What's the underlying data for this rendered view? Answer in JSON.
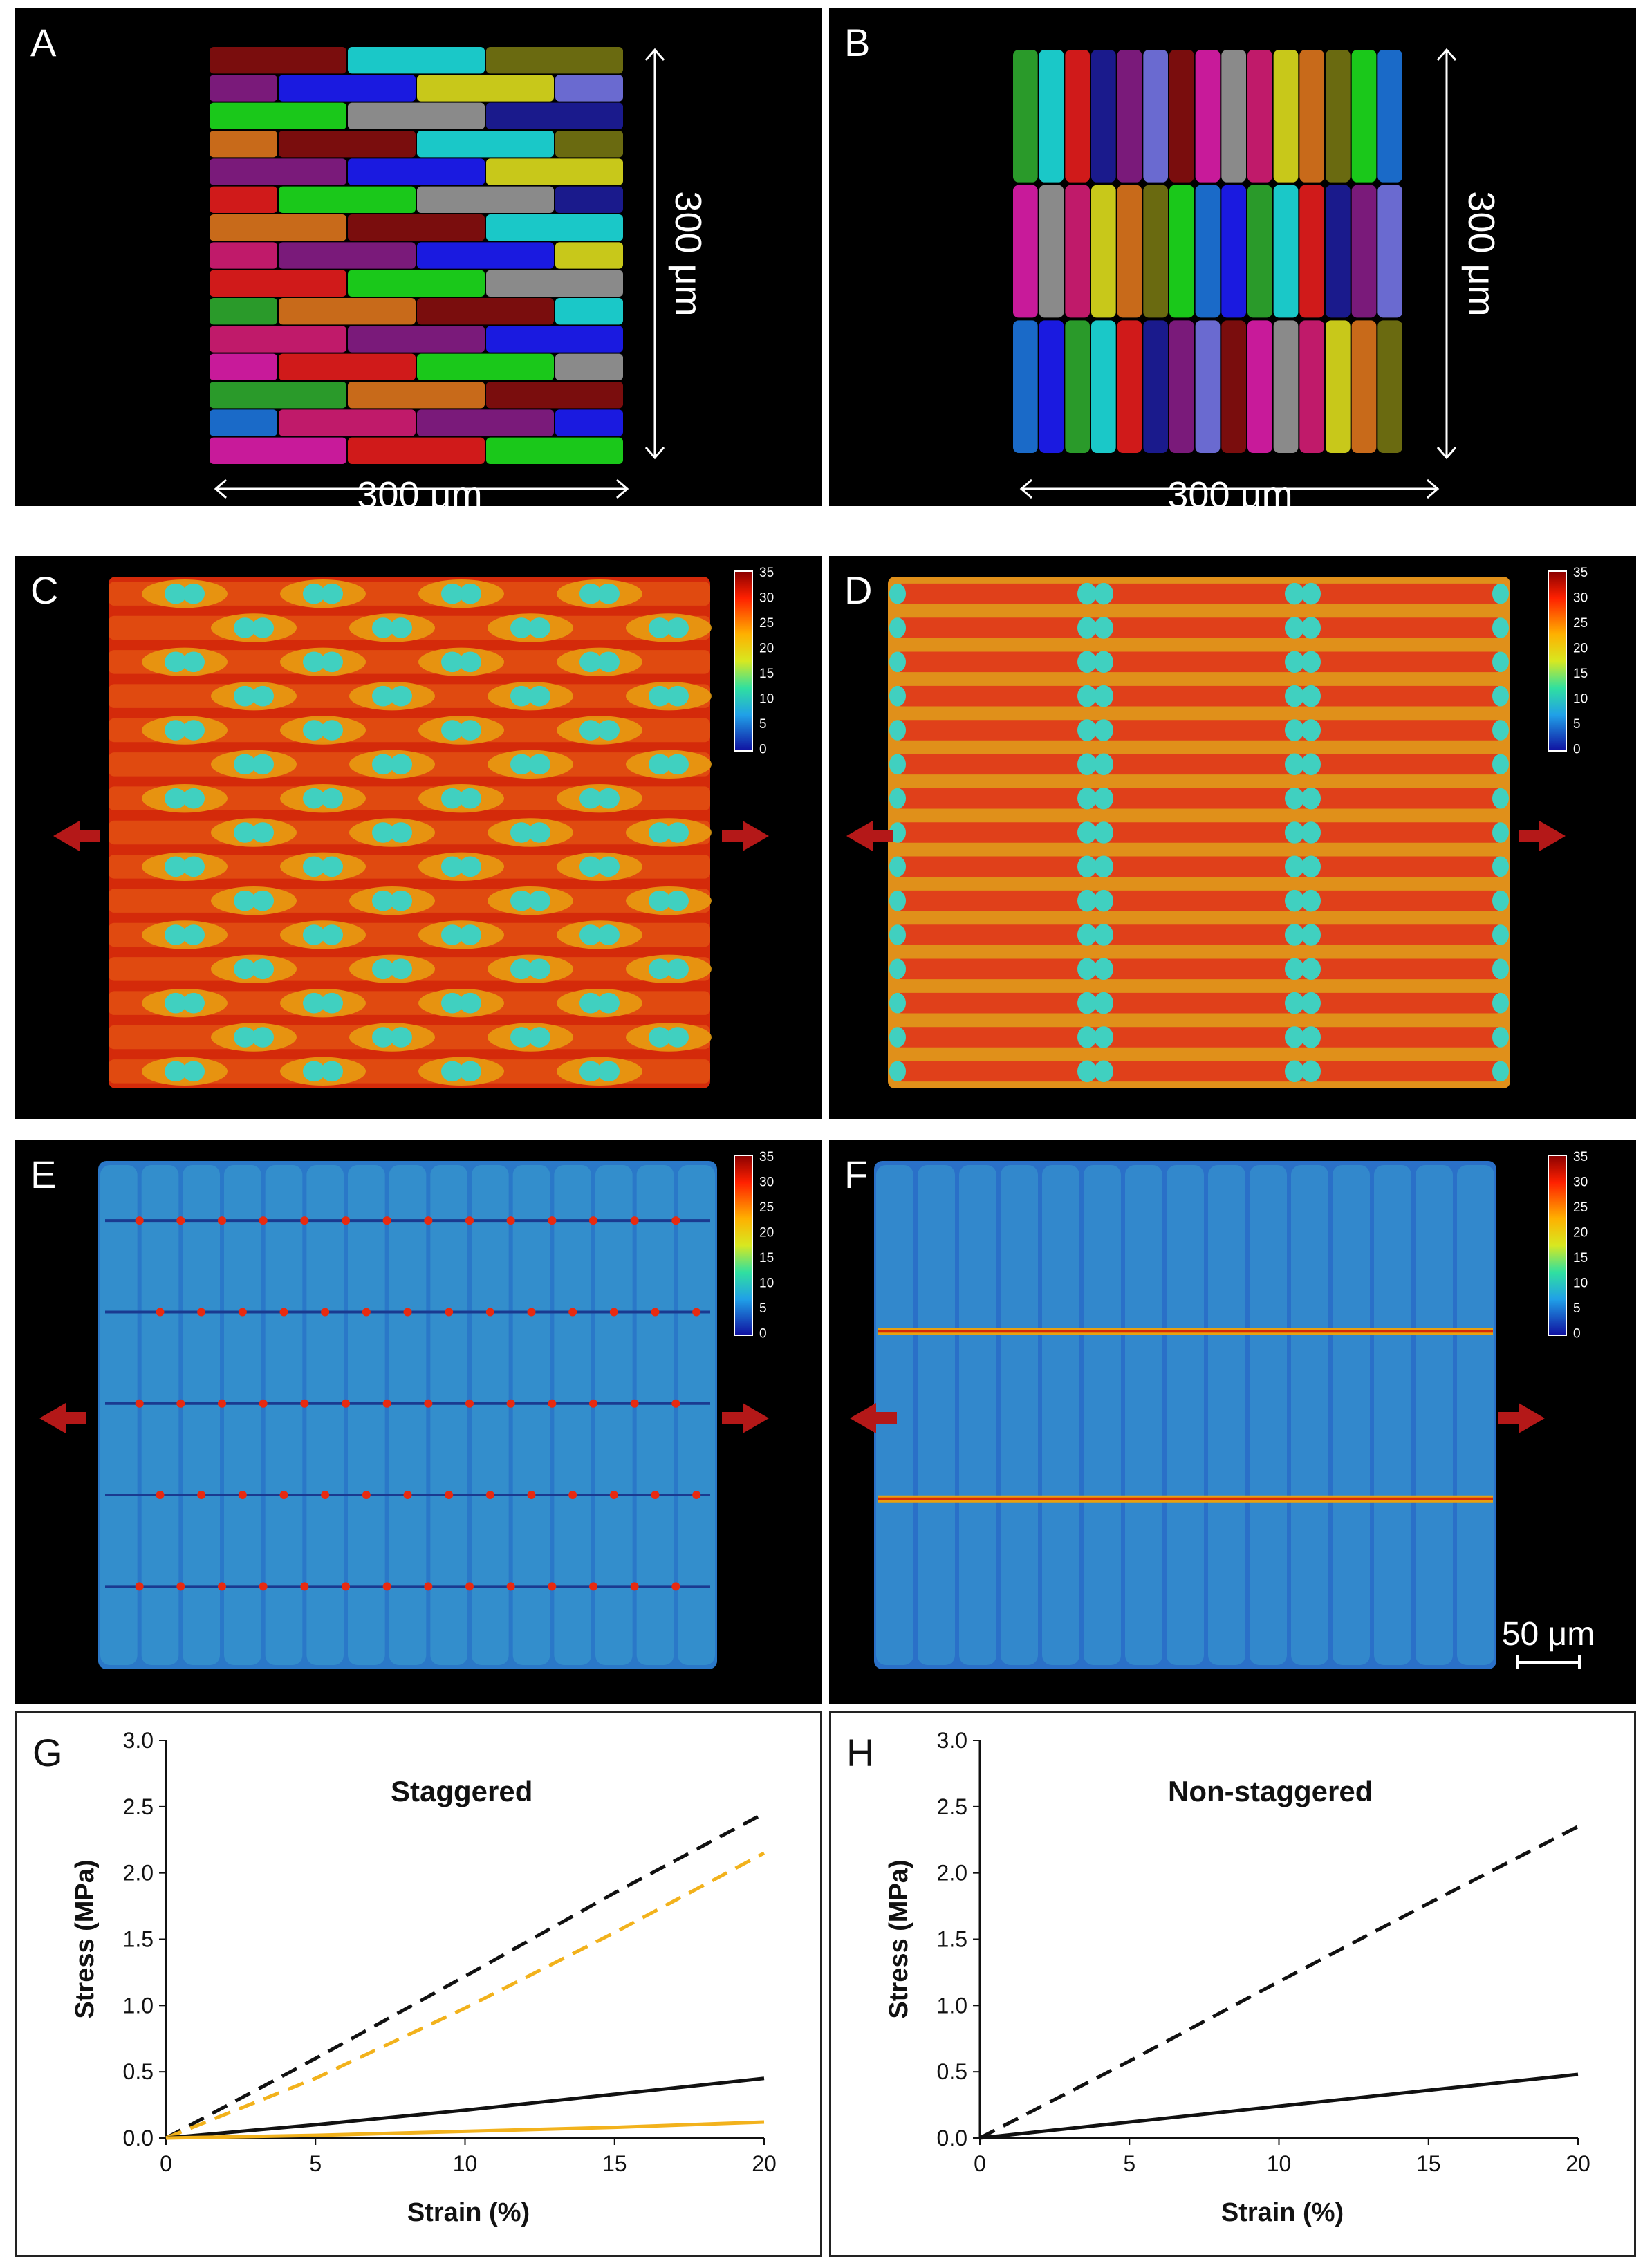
{
  "panels": {
    "A": {
      "label": "A",
      "width_label": "300 μm",
      "height_label": "300 μm"
    },
    "B": {
      "label": "B",
      "width_label": "300 μm",
      "height_label": "300 μm"
    },
    "C": {
      "label": "C"
    },
    "D": {
      "label": "D"
    },
    "E": {
      "label": "E"
    },
    "F": {
      "label": "F",
      "scalebar_label": "50 μm"
    },
    "G": {
      "label": "G"
    },
    "H": {
      "label": "H"
    }
  },
  "colorbar": {
    "ticks": [
      "35",
      "30",
      "25",
      "20",
      "15",
      "10",
      "5",
      "0"
    ]
  },
  "block_colors": [
    "#7a0d0d",
    "#1a1a8c",
    "#2a9a2a",
    "#1ac81a",
    "#c8c81a",
    "#c81a9a",
    "#7a1a7a",
    "#1ac8c8",
    "#1a6ac8",
    "#c86a1a",
    "#8a8a8a",
    "#6a6ad0",
    "#d01a1a",
    "#1a1ae0",
    "#6a6a10",
    "#c01a6a"
  ],
  "heatmap_colors": {
    "red": "#d42a0a",
    "dark_red": "#8a0a0a",
    "orange": "#e8a010",
    "yellow": "#e8e030",
    "cyan": "#40d0c0",
    "blue": "#2a70c8",
    "light_blue": "#3aa0d0",
    "arrow": "#b41818"
  },
  "chart_data": [
    {
      "type": "line",
      "title": "Staggered",
      "xlabel": "Strain (%)",
      "ylabel": "Stress (MPa)",
      "xlim": [
        0,
        20
      ],
      "ylim": [
        0,
        3.0
      ],
      "xticks": [
        "0",
        "5",
        "10",
        "15",
        "20"
      ],
      "yticks": [
        "0.0",
        "0.5",
        "1.0",
        "1.5",
        "2.0",
        "2.5",
        "3.0"
      ],
      "series": [
        {
          "color": "#111111",
          "style": "dashed",
          "x": [
            0,
            5,
            10,
            15,
            20
          ],
          "y": [
            0,
            0.6,
            1.22,
            1.85,
            2.45
          ]
        },
        {
          "color": "#f2b21c",
          "style": "dashed",
          "x": [
            0,
            5,
            10,
            15,
            20
          ],
          "y": [
            0,
            0.45,
            0.98,
            1.55,
            2.15
          ]
        },
        {
          "color": "#111111",
          "style": "solid",
          "x": [
            0,
            5,
            10,
            15,
            20
          ],
          "y": [
            0,
            0.1,
            0.21,
            0.33,
            0.45
          ]
        },
        {
          "color": "#f2b21c",
          "style": "solid",
          "x": [
            0,
            5,
            10,
            15,
            20
          ],
          "y": [
            0,
            0.02,
            0.05,
            0.08,
            0.12
          ]
        }
      ]
    },
    {
      "type": "line",
      "title": "Non-staggered",
      "xlabel": "Strain (%)",
      "ylabel": "Stress (MPa)",
      "xlim": [
        0,
        20
      ],
      "ylim": [
        0,
        3.0
      ],
      "xticks": [
        "0",
        "5",
        "10",
        "15",
        "20"
      ],
      "yticks": [
        "0.0",
        "0.5",
        "1.0",
        "1.5",
        "2.0",
        "2.5",
        "3.0"
      ],
      "series": [
        {
          "color": "#111111",
          "style": "dashed",
          "x": [
            0,
            5,
            10,
            15,
            20
          ],
          "y": [
            0,
            0.58,
            1.18,
            1.77,
            2.35
          ]
        },
        {
          "color": "#111111",
          "style": "solid",
          "x": [
            0,
            5,
            10,
            15,
            20
          ],
          "y": [
            0,
            0.12,
            0.24,
            0.36,
            0.48
          ]
        }
      ]
    }
  ]
}
